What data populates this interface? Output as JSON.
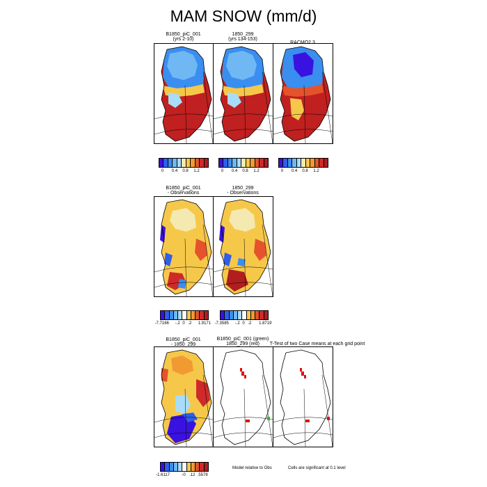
{
  "figure_title": "MAM SNOW (mm/d)",
  "rows": [
    {
      "panels": [
        {
          "title_lines": [
            "B1850_piC_001",
            "(yrs 2-10)"
          ]
        },
        {
          "title_lines": [
            "1850_299",
            "(yrs 134-153)"
          ]
        },
        {
          "title_lines": [
            "RACMO2.3"
          ]
        }
      ],
      "colorbar": {
        "ticks": [
          "0",
          "0.4",
          "0.8",
          "1.2"
        ],
        "colors": [
          "#3a12e0",
          "#2f5fe8",
          "#3a8ef0",
          "#6fb8f4",
          "#a9dcf7",
          "#f4e9b0",
          "#f6c84a",
          "#f29a32",
          "#e5532c",
          "#cf2a2a",
          "#b01e1e"
        ]
      }
    },
    {
      "panels": [
        {
          "title_lines": [
            "B1850_piC_001",
            "- Observations"
          ]
        },
        {
          "title_lines": [
            "1850_299",
            "- Observations"
          ]
        }
      ],
      "colorbar_a": {
        "ticks": [
          "-7.7166",
          "-.2",
          "0",
          ".2",
          "1.9171"
        ],
        "colors": [
          "#3a12e0",
          "#2f5fe8",
          "#3a8ef0",
          "#6fb8f4",
          "#a9dcf7",
          "#ffffff",
          "#f6c84a",
          "#f29a32",
          "#e5532c",
          "#cf2a2a",
          "#b01e1e"
        ]
      },
      "colorbar_b": {
        "ticks": [
          "-7.3585",
          "-.2",
          "0",
          ".2",
          "1.8719"
        ],
        "colors": [
          "#3a12e0",
          "#2f5fe8",
          "#3a8ef0",
          "#6fb8f4",
          "#a9dcf7",
          "#ffffff",
          "#f6c84a",
          "#f29a32",
          "#e5532c",
          "#cf2a2a",
          "#b01e1e"
        ]
      }
    },
    {
      "panels": [
        {
          "title_lines": [
            "B1850_piC_001",
            "- 1850_299"
          ]
        },
        {
          "title_lines": [
            "B1850_piC_001 (green)",
            "1850_299 (red)"
          ]
        },
        {
          "title_lines": [
            ""
          ]
        }
      ],
      "ttest_title": "T-Test of two Case means at each grid point",
      "colorbar": {
        "ticks": [
          "-1.6117",
          "-0",
          ".12",
          ".5578"
        ],
        "colors": [
          "#3a12e0",
          "#2f5fe8",
          "#3a8ef0",
          "#6fb8f4",
          "#a9dcf7",
          "#ffffff",
          "#f6c84a",
          "#f29a32",
          "#e5532c",
          "#cf2a2a",
          "#b01e1e"
        ]
      },
      "note_left": "Model relative to Obs",
      "note_right": "Cells are significant at 0.1 level"
    }
  ],
  "colors": {
    "snow_low": "#3a8ef0",
    "snow_mid": "#f6c84a",
    "snow_high": "#c02020",
    "sig_red": "#e01010",
    "sig_green": "#22c022"
  }
}
